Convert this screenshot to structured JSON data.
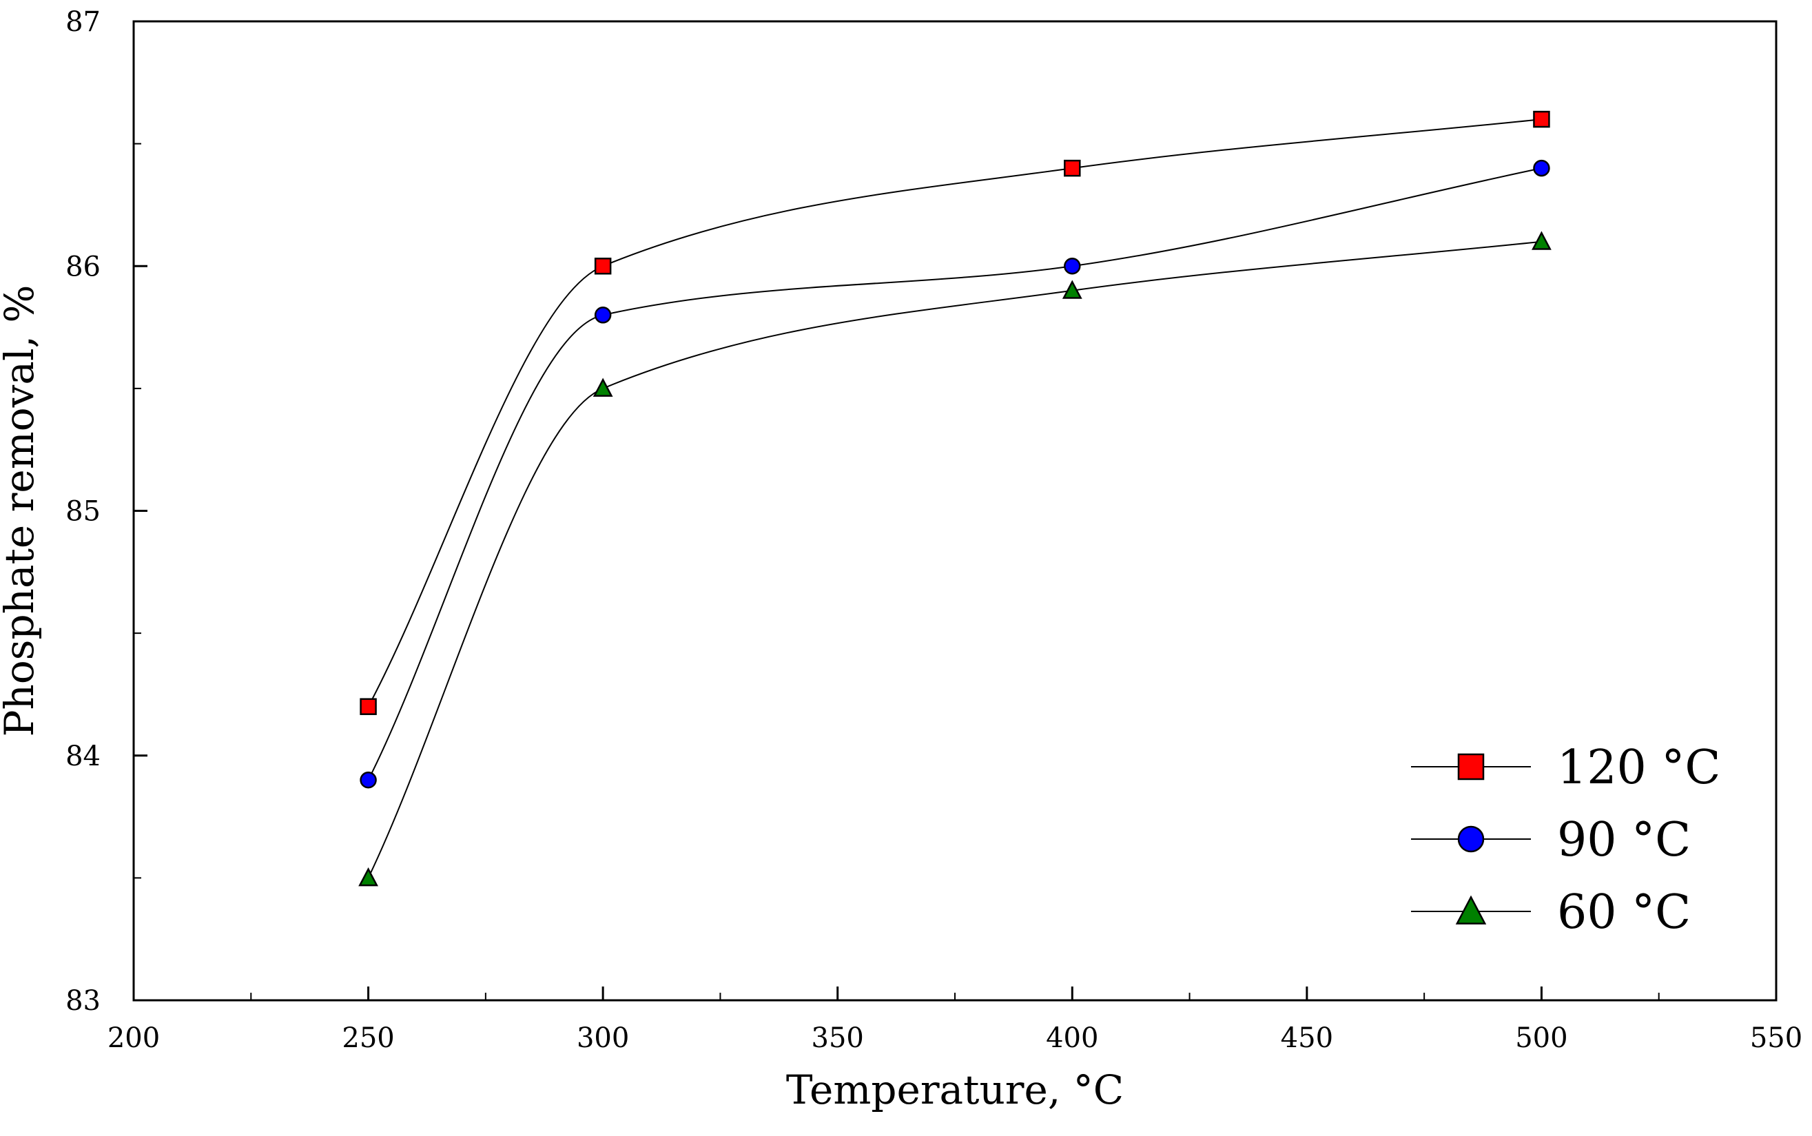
{
  "chart_data": {
    "type": "line",
    "title": "",
    "xlabel": "Temperature, °C",
    "ylabel": "Phosphate removal, %",
    "xlim": [
      200,
      550
    ],
    "ylim": [
      83,
      87
    ],
    "xticks": [
      200,
      250,
      300,
      350,
      400,
      450,
      500,
      550
    ],
    "yticks": [
      83,
      84,
      85,
      86,
      87
    ],
    "xtick_labels": [
      "200",
      "250",
      "300",
      "350",
      "400",
      "450",
      "500",
      "550"
    ],
    "ytick_labels": [
      "83",
      "84",
      "85",
      "86",
      "87"
    ],
    "grid": false,
    "legend_position": "bottom-right",
    "x": [
      250,
      300,
      400,
      500
    ],
    "series": [
      {
        "name": "120 °C",
        "label": "120 °C",
        "marker": "square",
        "color": "#ff0000",
        "values": [
          84.2,
          86.0,
          86.4,
          86.6
        ]
      },
      {
        "name": "90 °C",
        "label": "90 °C",
        "marker": "circle",
        "color": "#0000ff",
        "values": [
          83.9,
          85.8,
          86.0,
          86.4
        ]
      },
      {
        "name": "60 °C",
        "label": "60 °C",
        "marker": "triangle",
        "color": "#008000",
        "values": [
          83.5,
          85.5,
          85.9,
          86.1
        ]
      }
    ]
  }
}
